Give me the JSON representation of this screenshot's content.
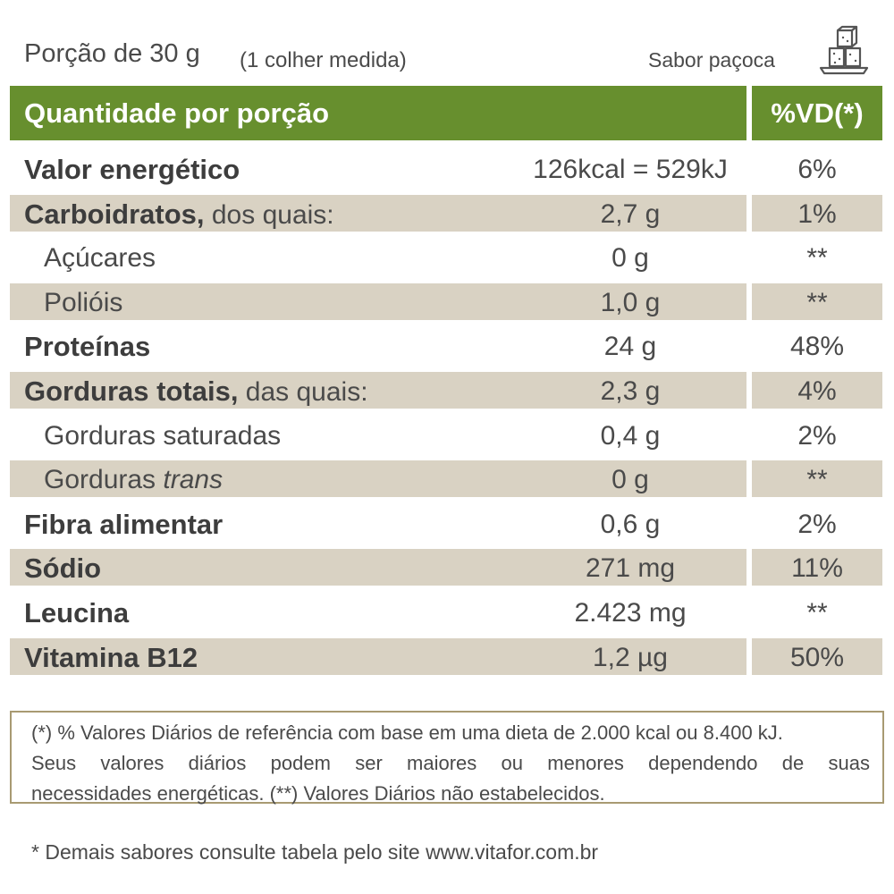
{
  "header": {
    "portion": "Porção de 30 g",
    "measure": "(1 colher medida)",
    "flavor": "Sabor paçoca",
    "flavor_icon": "sugar-cubes-icon"
  },
  "table_header": {
    "left": "Quantidade por porção",
    "right": "%VD(*)"
  },
  "rows": [
    {
      "bold": "Valor energético",
      "rest": "",
      "value": "126kcal = 529kJ",
      "vd": "6%"
    },
    {
      "bold": "Carboidratos,",
      "rest": " dos quais:",
      "value": "2,7 g",
      "vd": "1%"
    },
    {
      "bold": "",
      "rest": "Açúcares",
      "value": "0 g",
      "vd": "**"
    },
    {
      "bold": "",
      "rest": "Polióis",
      "value": "1,0 g",
      "vd": "**"
    },
    {
      "bold": "Proteínas",
      "rest": "",
      "value": "24 g",
      "vd": "48%"
    },
    {
      "bold": "Gorduras totais,",
      "rest": " das quais:",
      "value": "2,3 g",
      "vd": "4%"
    },
    {
      "bold": "",
      "rest": "Gorduras saturadas",
      "value": "0,4 g",
      "vd": "2%"
    },
    {
      "bold": "",
      "rest": "Gorduras ",
      "italic": "trans",
      "value": "0 g",
      "vd": "**"
    },
    {
      "bold": "Fibra alimentar",
      "rest": "",
      "value": "0,6 g",
      "vd": "2%"
    },
    {
      "bold": "Sódio",
      "rest": "",
      "value": "271 mg",
      "vd": "11%"
    },
    {
      "bold": "Leucina",
      "rest": "",
      "value": "2.423 mg",
      "vd": "**"
    },
    {
      "bold": "Vitamina B12",
      "rest": "",
      "value": "1,2 µg",
      "vd": "50%"
    }
  ],
  "footnote": {
    "line1": "(*) % Valores Diários de referência com base em uma dieta de 2.000 kcal ou 8.400 kJ.",
    "line2": "Seus valores diários podem ser maiores ou menores dependendo de suas",
    "line3": "necessidades energéticas. (**) Valores Diários não estabelecidos."
  },
  "site_note": "* Demais sabores consulte tabela pelo site www.vitafor.com.br",
  "colors": {
    "header_green": "#678f2e",
    "band_beige": "#d9d2c3",
    "border_tan": "#a89a72"
  }
}
